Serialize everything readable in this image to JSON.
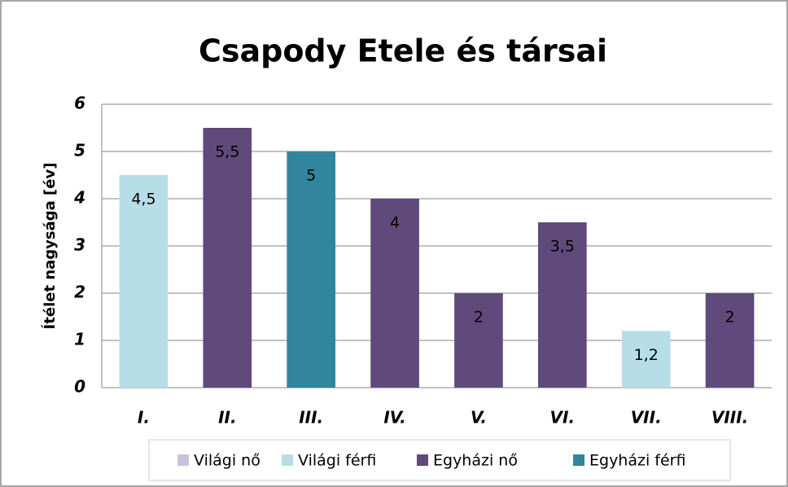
{
  "chart_data": {
    "type": "bar",
    "title": "Csapody Etele és társai",
    "y_label": "Ítélet nagysága [év]",
    "categories": [
      "I.",
      "II.",
      "III.",
      "IV.",
      "V.",
      "VI.",
      "VII.",
      "VIII."
    ],
    "series": [
      {
        "name": "Világi nő",
        "color": "#ccc1da",
        "values": [
          null,
          null,
          null,
          null,
          null,
          null,
          null,
          null
        ]
      },
      {
        "name": "Világi férfi",
        "color": "#b7dee8",
        "values": [
          4.5,
          null,
          null,
          null,
          null,
          null,
          1.2,
          null
        ],
        "value_labels": [
          "4,5",
          null,
          null,
          null,
          null,
          null,
          "1,2",
          null
        ]
      },
      {
        "name": "Egyházi nő",
        "color": "#604a7b",
        "values": [
          null,
          5.5,
          null,
          4,
          2,
          3.5,
          null,
          2
        ],
        "value_labels": [
          null,
          "5,5",
          null,
          "4",
          "2",
          "3,5",
          null,
          "2"
        ]
      },
      {
        "name": "Egyházi férfi",
        "color": "#31859c",
        "values": [
          null,
          null,
          5,
          null,
          null,
          null,
          null,
          null
        ],
        "value_labels": [
          null,
          null,
          "5",
          null,
          null,
          null,
          null,
          null
        ]
      }
    ],
    "ylim": [
      0,
      6
    ],
    "yticks": [
      0,
      1,
      2,
      3,
      4,
      5,
      6
    ],
    "grid": true,
    "legend": "bottom"
  }
}
